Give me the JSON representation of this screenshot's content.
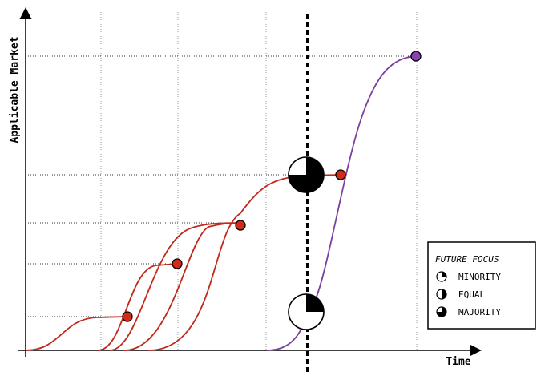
{
  "axes": {
    "y_label": "Applicable Market",
    "x_label": "Time"
  },
  "legend": {
    "title": "FUTURE FOCUS",
    "items": [
      {
        "label": "MINORITY",
        "fraction": 0.25
      },
      {
        "label": "EQUAL",
        "fraction": 0.5
      },
      {
        "label": "MAJORITY",
        "fraction": 0.75
      }
    ]
  },
  "colors": {
    "red_curve": "#c0281b",
    "red_point": "#d42a1a",
    "purple_curve": "#7b3fa0",
    "purple_point": "#8a44b0",
    "grid": "#888888",
    "divider": "#000000"
  },
  "markers": [
    {
      "name": "upper-focus-marker",
      "fraction": 0.75
    },
    {
      "name": "lower-focus-marker",
      "fraction": 0.25
    }
  ]
}
